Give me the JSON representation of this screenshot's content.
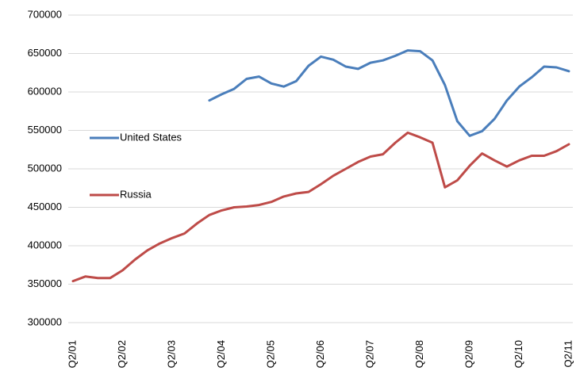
{
  "chart_data": {
    "type": "line",
    "categories": [
      "Q2/01",
      null,
      null,
      null,
      "Q2/02",
      null,
      null,
      null,
      "Q2/03",
      null,
      null,
      null,
      "Q2/04",
      null,
      null,
      null,
      "Q2/05",
      null,
      null,
      null,
      "Q2/06",
      null,
      null,
      null,
      "Q2/07",
      null,
      null,
      null,
      "Q2/08",
      null,
      null,
      null,
      "Q2/09",
      null,
      null,
      null,
      "Q2/10",
      null,
      null,
      null,
      "Q2/11"
    ],
    "series": [
      {
        "name": "United States",
        "color": "#4a7ebb",
        "values": [
          null,
          null,
          null,
          null,
          null,
          null,
          null,
          null,
          null,
          null,
          null,
          589000,
          597000,
          604000,
          617000,
          620000,
          611000,
          607000,
          614000,
          634000,
          646000,
          642000,
          633000,
          630000,
          638000,
          641000,
          647000,
          654000,
          653000,
          641000,
          609000,
          562000,
          543000,
          549000,
          565000,
          589000,
          607000,
          619000,
          633000,
          632000,
          627000
        ]
      },
      {
        "name": "Russia",
        "color": "#be4b48",
        "values": [
          354000,
          360000,
          358000,
          358000,
          368000,
          382000,
          394000,
          403000,
          410000,
          416000,
          429000,
          440000,
          446000,
          450000,
          451000,
          453000,
          457000,
          464000,
          468000,
          470000,
          480000,
          491000,
          500000,
          509000,
          516000,
          519000,
          534000,
          547000,
          541000,
          534000,
          476000,
          485000,
          504000,
          520000,
          511000,
          503000,
          511000,
          517000,
          517000,
          523000,
          532000
        ]
      }
    ],
    "ylim": [
      300000,
      700000
    ],
    "yticks": [
      300000,
      350000,
      400000,
      450000,
      500000,
      550000,
      600000,
      650000,
      700000
    ],
    "grid": true,
    "legend": "left"
  }
}
